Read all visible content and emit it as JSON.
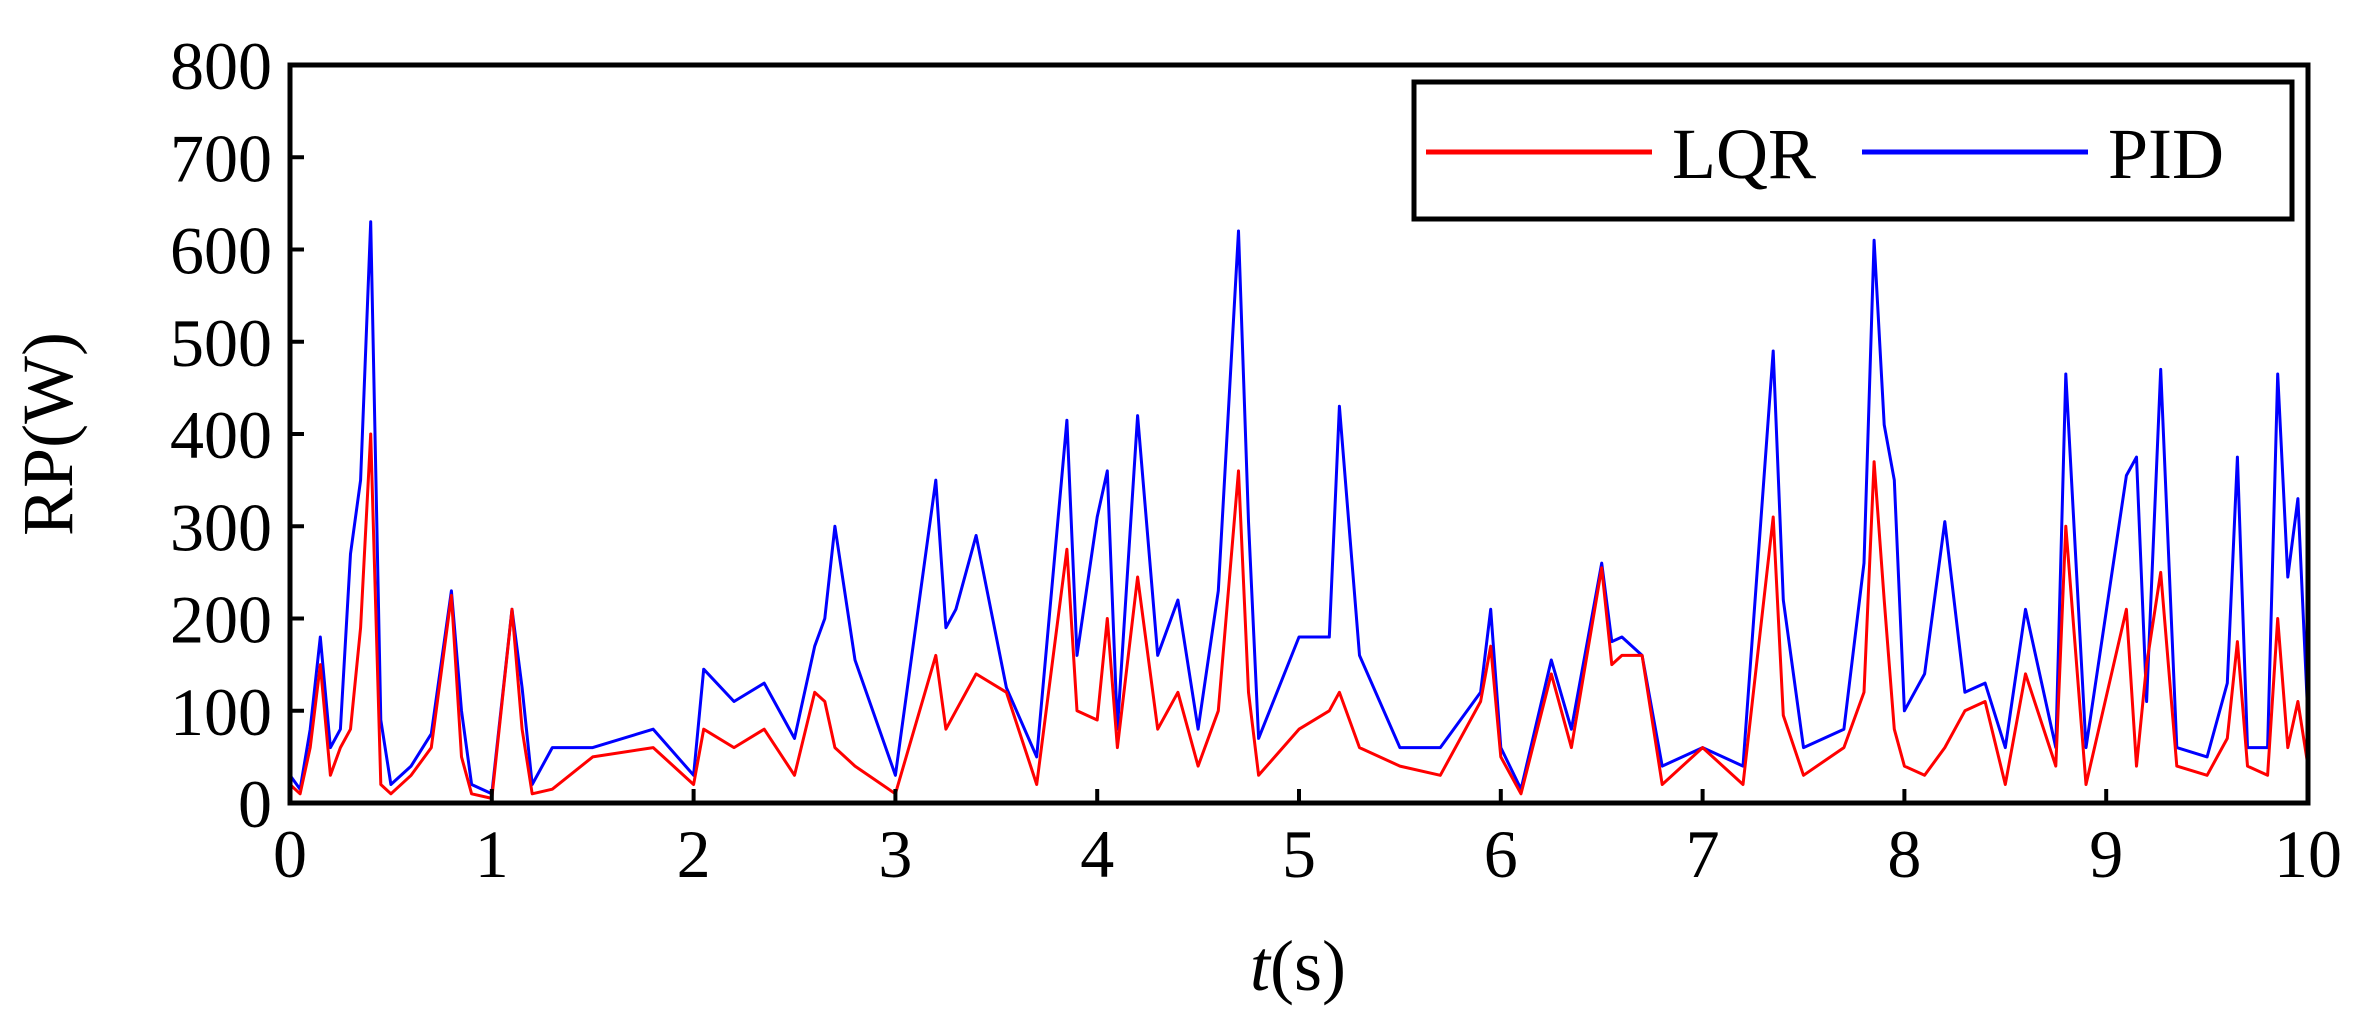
{
  "chart_data": {
    "type": "line",
    "xlabel_italic": "t",
    "xlabel_rest": "(s)",
    "ylabel": "RP(W)",
    "xlim": [
      0,
      10
    ],
    "ylim": [
      0,
      800
    ],
    "xticks": [
      "0",
      "1",
      "2",
      "3",
      "4",
      "5",
      "6",
      "7",
      "8",
      "9",
      "10"
    ],
    "yticks": [
      "0",
      "100",
      "200",
      "300",
      "400",
      "500",
      "600",
      "700",
      "800"
    ],
    "grid": false,
    "legend_position": "top-right",
    "colors": {
      "LQR": "#ff0000",
      "PID": "#0000ff"
    },
    "series": [
      {
        "name": "LQR",
        "x": [
          0,
          0.05,
          0.1,
          0.15,
          0.2,
          0.25,
          0.3,
          0.35,
          0.4,
          0.45,
          0.5,
          0.6,
          0.7,
          0.8,
          0.85,
          0.9,
          1.0,
          1.1,
          1.15,
          1.2,
          1.3,
          1.5,
          1.8,
          2.0,
          2.05,
          2.2,
          2.35,
          2.5,
          2.6,
          2.65,
          2.7,
          2.8,
          3.0,
          3.2,
          3.25,
          3.3,
          3.4,
          3.55,
          3.7,
          3.85,
          3.9,
          4.0,
          4.05,
          4.1,
          4.2,
          4.3,
          4.4,
          4.5,
          4.6,
          4.7,
          4.75,
          4.8,
          5.0,
          5.15,
          5.2,
          5.3,
          5.5,
          5.7,
          5.9,
          5.95,
          6.0,
          6.1,
          6.25,
          6.35,
          6.5,
          6.55,
          6.6,
          6.7,
          6.8,
          7.0,
          7.2,
          7.35,
          7.4,
          7.5,
          7.7,
          7.8,
          7.85,
          7.9,
          7.95,
          8.0,
          8.1,
          8.2,
          8.3,
          8.4,
          8.5,
          8.6,
          8.75,
          8.8,
          8.9,
          9.1,
          9.15,
          9.2,
          9.27,
          9.35,
          9.5,
          9.6,
          9.65,
          9.7,
          9.8,
          9.85,
          9.9,
          9.95,
          10.0
        ],
        "values": [
          20,
          10,
          60,
          150,
          30,
          60,
          80,
          190,
          400,
          20,
          10,
          30,
          60,
          225,
          50,
          10,
          5,
          210,
          80,
          10,
          15,
          50,
          60,
          20,
          80,
          60,
          80,
          30,
          120,
          110,
          60,
          40,
          10,
          160,
          80,
          100,
          140,
          120,
          20,
          275,
          100,
          90,
          200,
          60,
          245,
          80,
          120,
          40,
          100,
          360,
          120,
          30,
          80,
          100,
          120,
          60,
          40,
          30,
          110,
          170,
          50,
          10,
          140,
          60,
          255,
          150,
          160,
          160,
          20,
          60,
          20,
          310,
          95,
          30,
          60,
          120,
          370,
          220,
          80,
          40,
          30,
          60,
          100,
          110,
          20,
          140,
          40,
          300,
          20,
          210,
          40,
          150,
          250,
          40,
          30,
          70,
          175,
          40,
          30,
          200,
          60,
          110,
          40
        ]
      },
      {
        "name": "PID",
        "x": [
          0,
          0.05,
          0.1,
          0.15,
          0.2,
          0.25,
          0.3,
          0.35,
          0.4,
          0.45,
          0.5,
          0.6,
          0.7,
          0.8,
          0.85,
          0.9,
          1.0,
          1.1,
          1.15,
          1.2,
          1.3,
          1.5,
          1.8,
          2.0,
          2.05,
          2.2,
          2.35,
          2.5,
          2.6,
          2.65,
          2.7,
          2.8,
          3.0,
          3.2,
          3.25,
          3.3,
          3.4,
          3.55,
          3.7,
          3.85,
          3.9,
          4.0,
          4.05,
          4.1,
          4.2,
          4.3,
          4.4,
          4.5,
          4.6,
          4.7,
          4.75,
          4.8,
          5.0,
          5.15,
          5.2,
          5.3,
          5.5,
          5.7,
          5.9,
          5.95,
          6.0,
          6.1,
          6.25,
          6.35,
          6.5,
          6.55,
          6.6,
          6.7,
          6.8,
          7.0,
          7.2,
          7.35,
          7.4,
          7.5,
          7.7,
          7.8,
          7.85,
          7.9,
          7.95,
          8.0,
          8.1,
          8.2,
          8.3,
          8.4,
          8.5,
          8.6,
          8.75,
          8.8,
          8.9,
          9.1,
          9.15,
          9.2,
          9.27,
          9.35,
          9.5,
          9.6,
          9.65,
          9.7,
          9.8,
          9.85,
          9.9,
          9.95,
          10.0
        ],
        "values": [
          30,
          15,
          80,
          180,
          60,
          80,
          270,
          350,
          630,
          90,
          20,
          40,
          75,
          230,
          100,
          20,
          10,
          210,
          125,
          20,
          60,
          60,
          80,
          30,
          145,
          110,
          130,
          70,
          170,
          200,
          300,
          155,
          30,
          350,
          190,
          210,
          290,
          125,
          50,
          415,
          160,
          310,
          360,
          80,
          420,
          160,
          220,
          80,
          230,
          620,
          305,
          70,
          180,
          180,
          430,
          160,
          60,
          60,
          120,
          210,
          60,
          15,
          155,
          80,
          260,
          175,
          180,
          160,
          40,
          60,
          40,
          490,
          220,
          60,
          80,
          260,
          610,
          410,
          350,
          100,
          140,
          305,
          120,
          130,
          60,
          210,
          60,
          465,
          60,
          355,
          375,
          110,
          470,
          60,
          50,
          130,
          375,
          60,
          60,
          465,
          245,
          330,
          90
        ]
      }
    ]
  }
}
